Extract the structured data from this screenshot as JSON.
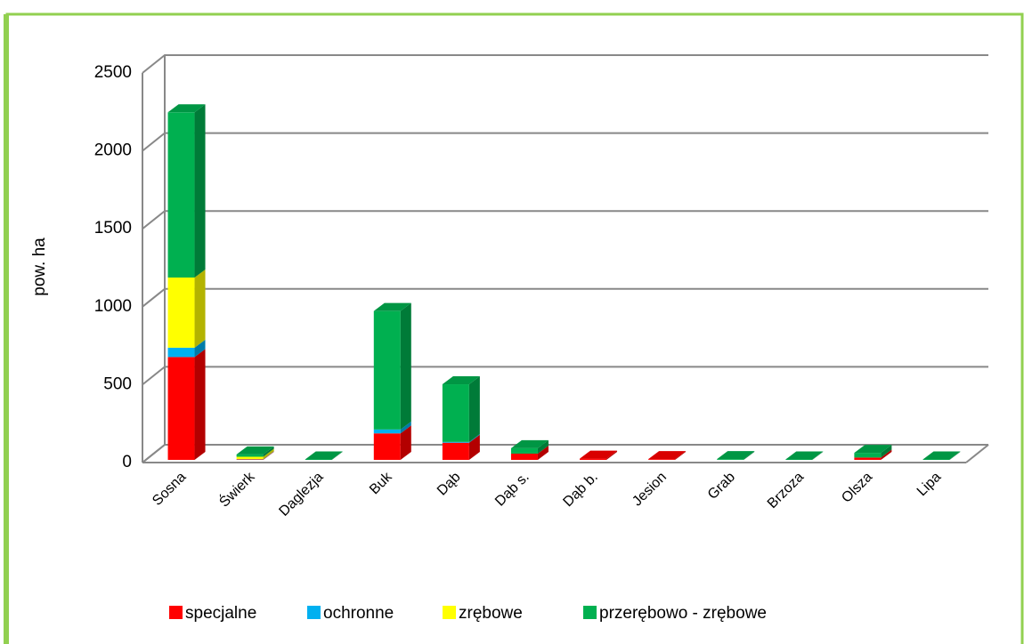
{
  "chart_data": {
    "type": "bar3d_stacked",
    "y_label": "pow. ha",
    "categories": [
      "Sosna",
      "Świerk",
      "Daglezja",
      "Buk",
      "Dąb",
      "Dąb s.",
      "Dąb b.",
      "Jesion",
      "Grab",
      "Brzoza",
      "Olsza",
      "Lipa"
    ],
    "series": [
      {
        "name": "specjalne",
        "color": "#ff0000",
        "values": [
          660,
          3,
          0,
          170,
          110,
          40,
          8,
          5,
          0,
          0,
          15,
          0
        ]
      },
      {
        "name": "ochronne",
        "color": "#00b0f0",
        "values": [
          60,
          2,
          0,
          25,
          5,
          0,
          0,
          0,
          0,
          0,
          0,
          0
        ]
      },
      {
        "name": "zrębowe",
        "color": "#ffff00",
        "values": [
          450,
          15,
          0,
          0,
          0,
          0,
          0,
          0,
          0,
          0,
          0,
          0
        ]
      },
      {
        "name": "przerębowo - zrębowe",
        "color": "#00b050",
        "values": [
          1060,
          15,
          3,
          760,
          370,
          35,
          0,
          0,
          5,
          3,
          30,
          3
        ]
      }
    ],
    "ylim": [
      0,
      2500
    ],
    "yticks": [
      0,
      500,
      1000,
      1500,
      2000,
      2500
    ],
    "grid": true,
    "legend": "bottom"
  }
}
